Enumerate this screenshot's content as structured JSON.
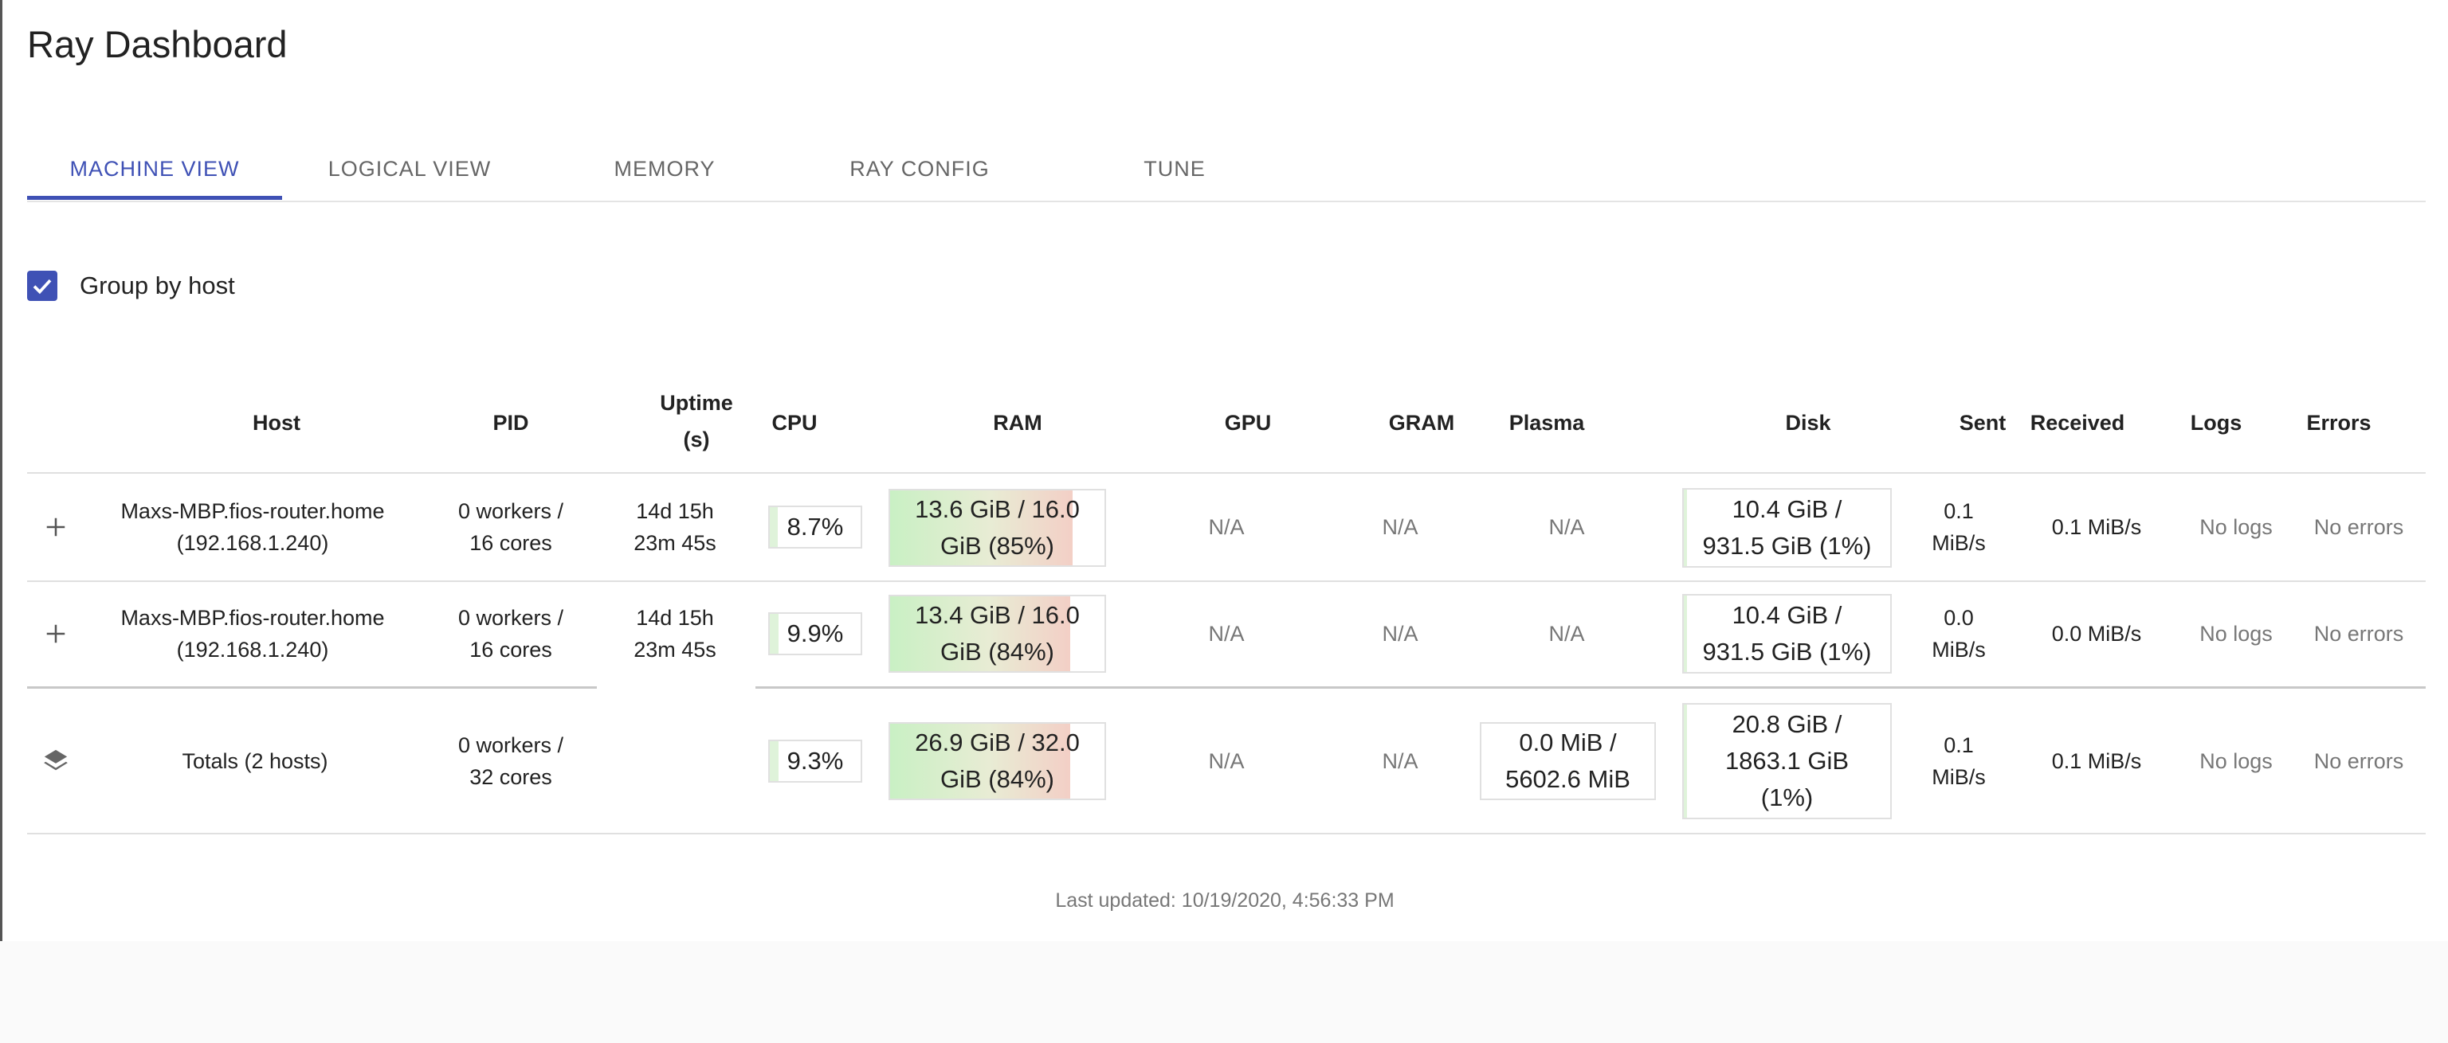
{
  "app": {
    "title": "Ray Dashboard"
  },
  "tabs": [
    {
      "label": "MACHINE VIEW",
      "active": true
    },
    {
      "label": "LOGICAL VIEW"
    },
    {
      "label": "MEMORY"
    },
    {
      "label": "RAY CONFIG"
    },
    {
      "label": "TUNE"
    }
  ],
  "group_by_host": {
    "label": "Group by host",
    "checked": true
  },
  "table": {
    "headers": {
      "host": "Host",
      "pid": "PID",
      "uptime_line1": "Uptime",
      "uptime_line2": "(s)",
      "cpu": "CPU",
      "ram": "RAM",
      "gpu": "GPU",
      "gram": "GRAM",
      "plasma": "Plasma",
      "disk": "Disk",
      "sent": "Sent",
      "received": "Received",
      "logs": "Logs",
      "errors": "Errors"
    },
    "rows": [
      {
        "host_line1": "Maxs-MBP.fios-router.home",
        "host_line2": "(192.168.1.240)",
        "pid_line1": "0 workers /",
        "pid_line2": "16 cores",
        "uptime_line1": "14d 15h",
        "uptime_line2": "23m 45s",
        "cpu": "8.7%",
        "cpu_pct": 8.7,
        "ram_line1": "13.6 GiB / 16.0",
        "ram_line2": "GiB (85%)",
        "ram_pct": 85,
        "gpu": "N/A",
        "gram": "N/A",
        "plasma": "N/A",
        "disk_line1": "10.4 GiB /",
        "disk_line2": "931.5 GiB (1%)",
        "disk_pct": 1,
        "sent_line1": "0.1",
        "sent_line2": "MiB/s",
        "received": "0.1 MiB/s",
        "logs": "No logs",
        "errors": "No errors"
      },
      {
        "host_line1": "Maxs-MBP.fios-router.home",
        "host_line2": "(192.168.1.240)",
        "pid_line1": "0 workers /",
        "pid_line2": "16 cores",
        "uptime_line1": "14d 15h",
        "uptime_line2": "23m 45s",
        "cpu": "9.9%",
        "cpu_pct": 9.9,
        "ram_line1": "13.4 GiB / 16.0",
        "ram_line2": "GiB (84%)",
        "ram_pct": 84,
        "gpu": "N/A",
        "gram": "N/A",
        "plasma": "N/A",
        "disk_line1": "10.4 GiB /",
        "disk_line2": "931.5 GiB (1%)",
        "disk_pct": 1,
        "sent_line1": "0.0",
        "sent_line2": "MiB/s",
        "received": "0.0 MiB/s",
        "logs": "No logs",
        "errors": "No errors"
      }
    ],
    "totals": {
      "host": "Totals (2 hosts)",
      "pid_line1": "0 workers /",
      "pid_line2": "32 cores",
      "cpu": "9.3%",
      "cpu_pct": 9.3,
      "ram_line1": "26.9 GiB / 32.0",
      "ram_line2": "GiB (84%)",
      "ram_pct": 84,
      "gpu": "N/A",
      "gram": "N/A",
      "plasma_line1": "0.0 MiB /",
      "plasma_line2": "5602.6 MiB",
      "disk_line1": "20.8 GiB /",
      "disk_line2": "1863.1 GiB",
      "disk_line3": "(1%)",
      "disk_pct": 1,
      "sent_line1": "0.1",
      "sent_line2": "MiB/s",
      "received": "0.1 MiB/s",
      "logs": "No logs",
      "errors": "No errors"
    }
  },
  "footer": {
    "last_updated": "Last updated: 10/19/2020, 4:56:33 PM"
  },
  "icons": {
    "expand": "plus-icon",
    "totals": "layers-icon",
    "checkbox": "check-icon"
  },
  "colors": {
    "accent": "#3f51b5",
    "usage_low": "#c9f0c4",
    "usage_high": "#f3cfc6"
  }
}
